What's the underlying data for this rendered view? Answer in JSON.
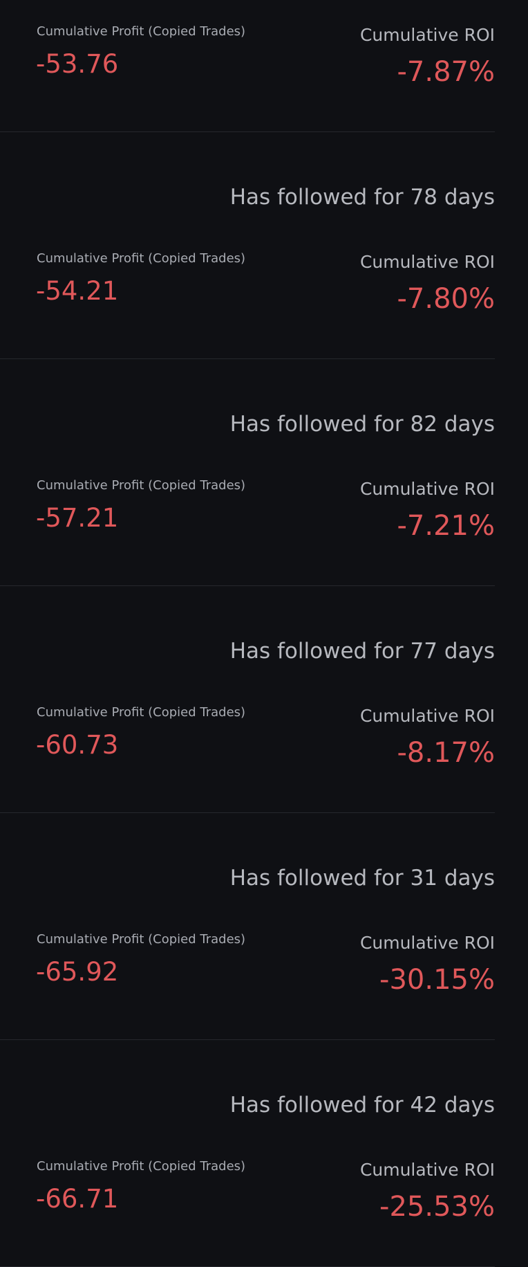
{
  "colors": {
    "background": "#0f1014",
    "negative": "#e0585a",
    "text_secondary": "#b7b9bf"
  },
  "labels": {
    "profit": "Cumulative Profit (Copied Trades)",
    "roi": "Cumulative ROI"
  },
  "entries": [
    {
      "followed": "",
      "profit": "-53.76",
      "roi": "-7.87%"
    },
    {
      "followed": "Has followed for 78 days",
      "profit": "-54.21",
      "roi": "-7.80%"
    },
    {
      "followed": "Has followed for 82 days",
      "profit": "-57.21",
      "roi": "-7.21%"
    },
    {
      "followed": "Has followed for 77 days",
      "profit": "-60.73",
      "roi": "-8.17%"
    },
    {
      "followed": "Has followed for 31 days",
      "profit": "-65.92",
      "roi": "-30.15%"
    },
    {
      "followed": "Has followed for 42 days",
      "profit": "-66.71",
      "roi": "-25.53%"
    }
  ]
}
